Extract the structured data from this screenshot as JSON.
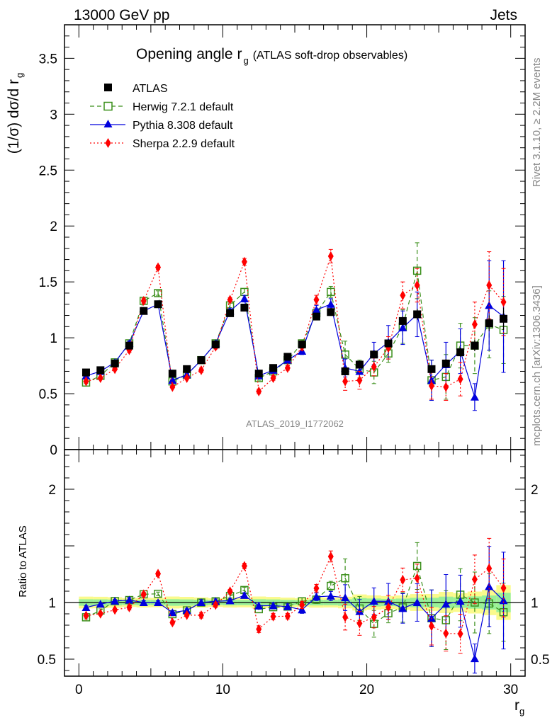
{
  "header": {
    "left": "13000 GeV pp",
    "right": "Jets"
  },
  "title": {
    "main": "Opening angle r",
    "sub": "g",
    "suffix": "(ATLAS soft-drop observables)"
  },
  "ylabel_main": {
    "text": "(1/σ) dσ/d r",
    "sub": "g"
  },
  "ylabel_ratio": "Ratio to ATLAS",
  "xlabel": {
    "text": "r",
    "sub": "g"
  },
  "side_labels": {
    "rivet": "Rivet 3.1.10, ≥ 2.2M events",
    "mcplots": "mcplots.cern.ch [arXiv:1306.3436]"
  },
  "watermark": "ATLAS_2019_I1772062",
  "colors": {
    "atlas": "#000000",
    "herwig": "#3a8f1a",
    "pythia": "#0000dd",
    "sherpa": "#ff0000",
    "band_inner": "#98f098",
    "band_outer": "#fafa8c"
  },
  "chart_data": {
    "type": "scatter",
    "xlim": [
      -1,
      31
    ],
    "main": {
      "ylim": [
        0,
        3.8
      ],
      "yticks": [
        "0",
        "0.5",
        "1",
        "1.5",
        "2",
        "2.5",
        "3",
        "3.5"
      ],
      "ytick_values": [
        0,
        0.5,
        1,
        1.5,
        2,
        2.5,
        3,
        3.5
      ]
    },
    "ratio": {
      "ylim": [
        0.35,
        2.35
      ],
      "yticks": [
        "0.5",
        "1",
        "2"
      ],
      "ytick_values": [
        0.5,
        1,
        2
      ]
    },
    "xticks": [
      "0",
      "10",
      "20",
      "30"
    ],
    "xtick_values": [
      0,
      10,
      20,
      30
    ],
    "x": [
      0.5,
      1.5,
      2.5,
      3.5,
      4.5,
      5.5,
      6.5,
      7.5,
      8.5,
      9.5,
      10.5,
      11.5,
      12.5,
      13.5,
      14.5,
      15.5,
      16.5,
      17.5,
      18.5,
      19.5,
      20.5,
      21.5,
      22.5,
      23.5,
      24.5,
      25.5,
      26.5,
      27.5,
      28.5,
      29.5
    ],
    "series": [
      {
        "name": "ATLAS",
        "marker": "square",
        "values": [
          0.69,
          0.71,
          0.77,
          0.93,
          1.24,
          1.3,
          0.68,
          0.72,
          0.8,
          0.94,
          1.22,
          1.27,
          0.68,
          0.73,
          0.83,
          0.94,
          1.19,
          1.23,
          0.7,
          0.76,
          0.85,
          0.95,
          1.15,
          1.21,
          0.72,
          0.77,
          0.87,
          0.93,
          1.13,
          1.17
        ],
        "errors": [
          0.02,
          0.02,
          0.02,
          0.02,
          0.03,
          0.03,
          0.02,
          0.02,
          0.02,
          0.02,
          0.03,
          0.03,
          0.02,
          0.02,
          0.02,
          0.02,
          0.03,
          0.03,
          0.02,
          0.03,
          0.03,
          0.03,
          0.04,
          0.05,
          0.03,
          0.04,
          0.04,
          0.05,
          0.07,
          0.1
        ]
      },
      {
        "name": "Herwig 7.2.1 default",
        "marker": "open-square",
        "dash": "6,4",
        "values": [
          0.6,
          0.66,
          0.78,
          0.95,
          1.33,
          1.4,
          0.61,
          0.67,
          0.8,
          0.95,
          1.29,
          1.41,
          0.64,
          0.7,
          0.8,
          0.95,
          1.22,
          1.41,
          0.85,
          0.72,
          0.69,
          0.86,
          1.1,
          1.6,
          0.62,
          0.65,
          0.93,
          0.93,
          1.12,
          1.07
        ],
        "errors": [
          0.01,
          0.01,
          0.01,
          0.02,
          0.02,
          0.02,
          0.01,
          0.01,
          0.02,
          0.02,
          0.02,
          0.03,
          0.02,
          0.02,
          0.02,
          0.03,
          0.04,
          0.05,
          0.12,
          0.08,
          0.1,
          0.08,
          0.15,
          0.25,
          0.18,
          0.2,
          0.2,
          0.25,
          0.3,
          0.3
        ]
      },
      {
        "name": "Pythia 8.308 default",
        "marker": "triangle",
        "values": [
          0.66,
          0.7,
          0.78,
          0.95,
          1.24,
          1.3,
          0.62,
          0.67,
          0.8,
          0.95,
          1.24,
          1.35,
          0.66,
          0.71,
          0.8,
          0.88,
          1.25,
          1.3,
          0.73,
          0.7,
          0.86,
          0.96,
          1.09,
          1.21,
          0.62,
          0.76,
          0.88,
          0.47,
          1.29,
          1.19
        ],
        "errors": [
          0.01,
          0.01,
          0.01,
          0.02,
          0.02,
          0.02,
          0.01,
          0.01,
          0.02,
          0.02,
          0.02,
          0.03,
          0.02,
          0.02,
          0.02,
          0.03,
          0.04,
          0.05,
          0.08,
          0.08,
          0.1,
          0.15,
          0.15,
          0.2,
          0.18,
          0.2,
          0.2,
          0.12,
          0.4,
          0.5
        ]
      },
      {
        "name": "Sherpa 2.2.9 default",
        "marker": "diamond",
        "dash": "2,3",
        "values": [
          0.61,
          0.64,
          0.72,
          0.89,
          1.33,
          1.63,
          0.56,
          0.64,
          0.71,
          0.92,
          1.34,
          1.68,
          0.52,
          0.64,
          0.73,
          0.92,
          1.34,
          1.73,
          0.61,
          0.62,
          0.74,
          0.91,
          1.38,
          1.47,
          0.57,
          0.56,
          0.63,
          1.12,
          1.47,
          1.32
        ],
        "errors": [
          0.01,
          0.01,
          0.01,
          0.02,
          0.02,
          0.02,
          0.01,
          0.01,
          0.02,
          0.02,
          0.02,
          0.03,
          0.02,
          0.02,
          0.02,
          0.03,
          0.04,
          0.06,
          0.08,
          0.08,
          0.08,
          0.1,
          0.12,
          0.15,
          0.12,
          0.12,
          0.15,
          0.2,
          0.3,
          0.3
        ]
      }
    ]
  }
}
